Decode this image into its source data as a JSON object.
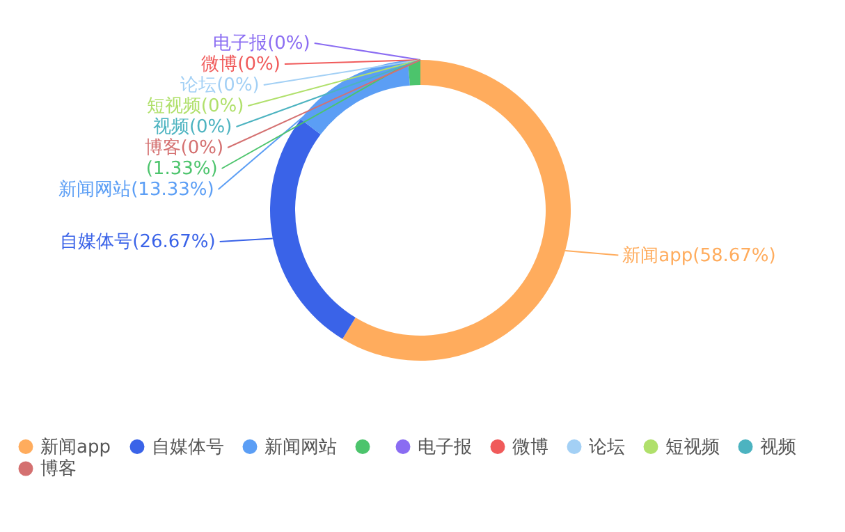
{
  "chart_data": {
    "type": "donut",
    "categories": [
      "新闻app",
      "自媒体号",
      "新闻网站",
      null,
      "电子报",
      "微博",
      "论坛",
      "短视频",
      "视频",
      "博客"
    ],
    "values": [
      58.67,
      26.67,
      13.33,
      1.33,
      0,
      0,
      0,
      0,
      0,
      0
    ],
    "value_labels": [
      "(58.67%)",
      "(26.67%)",
      "(13.33%)",
      "(1.33%)",
      "(0%)",
      "(0%)",
      "(0%)",
      "(0%)",
      "(0%)",
      "(0%)"
    ],
    "colors": [
      "#ffac5d",
      "#3a63e8",
      "#5b9ef5",
      "#4cc46c",
      "#8a6cf2",
      "#f05a5a",
      "#a3d0f5",
      "#b0e06b",
      "#4cb3c0",
      "#d47070"
    ],
    "legend": "bottom"
  }
}
